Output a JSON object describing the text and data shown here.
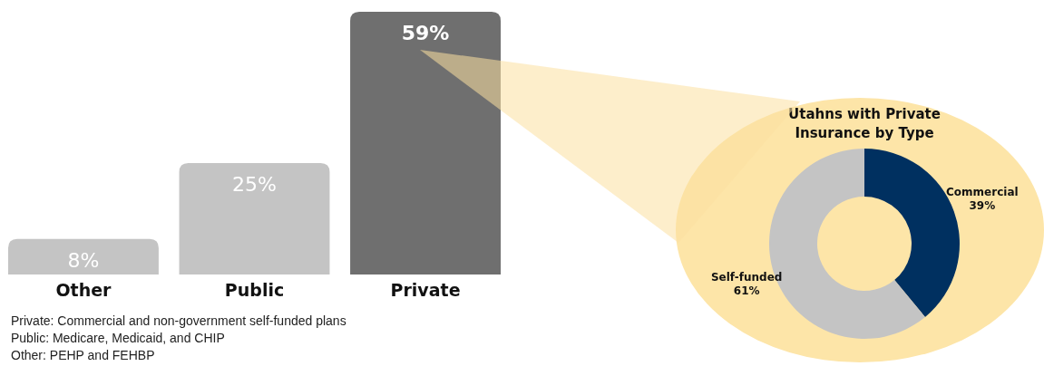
{
  "chart_data": [
    {
      "type": "bar",
      "categories": [
        "Other",
        "Public",
        "Private"
      ],
      "values": [
        8,
        25,
        59
      ],
      "colors": [
        "#c4c4c4",
        "#c4c4c4",
        "#6f6f6f"
      ],
      "value_labels": [
        "8%",
        "25%",
        "59%"
      ],
      "annotations": [
        "Private: Commercial and non-government self-funded plans",
        "Public: Medicare, Medicaid, and CHIP",
        "Other: PEHP and FEHBP"
      ]
    },
    {
      "type": "donut",
      "title": "Utahns with Private Insurance by Type",
      "categories": [
        "Commercial",
        "Self-funded"
      ],
      "values": [
        39,
        61
      ],
      "colors": [
        "#003060",
        "#c4c4c4"
      ],
      "value_labels": [
        "39%",
        "61%"
      ]
    }
  ]
}
